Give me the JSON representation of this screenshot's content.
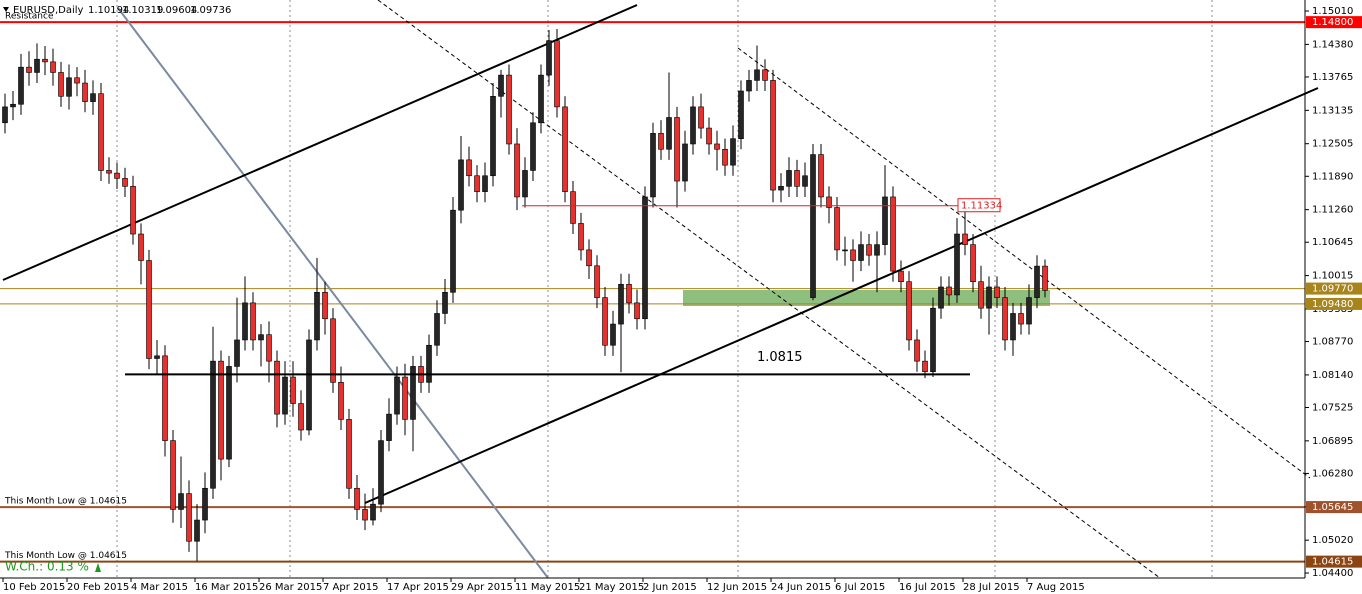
{
  "chart_data": {
    "type": "candlestick",
    "title": "EURUSD,Daily",
    "categories": [
      "10 Feb 2015",
      null,
      null,
      null,
      null,
      null,
      null,
      null,
      "20 Feb 2015",
      null,
      null,
      null,
      null,
      null,
      null,
      null,
      "4 Mar 2015",
      null,
      null,
      null,
      null,
      null,
      null,
      null,
      "16 Mar 2015",
      null,
      null,
      null,
      null,
      null,
      null,
      null,
      "26 Mar 2015",
      null,
      null,
      null,
      null,
      null,
      null,
      null,
      "7 Apr 2015",
      null,
      null,
      null,
      null,
      null,
      null,
      null,
      "17 Apr 2015",
      null,
      null,
      null,
      null,
      null,
      null,
      null,
      "29 Apr 2015",
      null,
      null,
      null,
      null,
      null,
      null,
      null,
      "11 May 2015",
      null,
      null,
      null,
      null,
      null,
      null,
      null,
      "21 May 2015",
      null,
      null,
      null,
      null,
      null,
      null,
      null,
      "2 Jun 2015",
      null,
      null,
      null,
      null,
      null,
      null,
      null,
      "12 Jun 2015",
      null,
      null,
      null,
      null,
      null,
      null,
      null,
      "24 Jun 2015",
      null,
      null,
      null,
      null,
      null,
      null,
      null,
      "6 Jul 2015",
      null,
      null,
      null,
      null,
      null,
      null,
      null,
      "16 Jul 2015",
      null,
      null,
      null,
      null,
      null,
      null,
      null,
      "28 Jul 2015",
      null,
      null,
      null,
      null,
      null,
      null,
      null,
      "7 Aug 2015",
      null,
      null
    ],
    "open": [
      1.129,
      1.132,
      1.1325,
      1.1395,
      1.1385,
      1.141,
      1.1405,
      1.1385,
      1.134,
      1.1375,
      1.1365,
      1.133,
      1.1345,
      1.12,
      1.1195,
      1.1185,
      1.117,
      1.108,
      1.103,
      1.0845,
      1.085,
      1.069,
      1.056,
      1.059,
      1.05,
      1.054,
      1.06,
      1.084,
      1.0655,
      1.083,
      1.088,
      1.095,
      1.088,
      1.089,
      1.084,
      1.074,
      1.081,
      1.076,
      1.071,
      1.088,
      1.097,
      1.092,
      1.08,
      1.073,
      1.06,
      1.056,
      1.054,
      1.057,
      1.069,
      1.074,
      1.081,
      1.073,
      1.083,
      1.08,
      1.087,
      1.093,
      1.097,
      1.1125,
      1.122,
      1.119,
      1.116,
      1.119,
      1.134,
      1.138,
      1.125,
      1.115,
      1.12,
      1.129,
      1.138,
      1.1445,
      1.132,
      1.116,
      1.11,
      1.105,
      1.102,
      1.096,
      1.087,
      1.091,
      1.0985,
      1.095,
      1.092,
      1.115,
      1.127,
      1.124,
      1.13,
      1.118,
      1.125,
      1.132,
      1.128,
      1.125,
      1.124,
      1.121,
      1.126,
      1.135,
      1.137,
      1.139,
      1.137,
      1.1163,
      1.117,
      1.12,
      1.117,
      1.096,
      1.123,
      1.115,
      1.113,
      1.105,
      1.105,
      1.103,
      1.106,
      1.104,
      1.106,
      1.115,
      1.101,
      1.099,
      1.088,
      1.084,
      1.082,
      1.094,
      1.098,
      1.0965,
      1.108,
      1.106,
      1.099,
      1.094,
      1.098,
      1.096,
      1.088,
      1.093,
      1.091,
      1.096,
      1.10194
    ],
    "high": [
      1.1345,
      1.135,
      1.142,
      1.1425,
      1.144,
      1.1435,
      1.143,
      1.1405,
      1.14,
      1.1395,
      1.139,
      1.137,
      1.1365,
      1.1225,
      1.1215,
      1.1205,
      1.119,
      1.11,
      1.105,
      1.088,
      1.087,
      1.071,
      1.066,
      1.0615,
      1.057,
      1.063,
      1.0905,
      1.086,
      1.085,
      1.096,
      1.1,
      1.097,
      1.091,
      1.0915,
      1.086,
      1.084,
      1.084,
      1.0785,
      1.09,
      1.1035,
      1.099,
      1.094,
      1.083,
      1.075,
      1.0625,
      1.059,
      1.06,
      1.071,
      1.077,
      1.083,
      1.0835,
      1.085,
      1.085,
      1.089,
      1.0955,
      1.0995,
      1.115,
      1.1265,
      1.1245,
      1.121,
      1.1215,
      1.1365,
      1.139,
      1.14,
      1.128,
      1.1225,
      1.131,
      1.14,
      1.1465,
      1.1467,
      1.134,
      1.118,
      1.112,
      1.107,
      1.104,
      1.098,
      1.0935,
      1.1005,
      1.1005,
      1.0975,
      1.117,
      1.129,
      1.1295,
      1.1385,
      1.132,
      1.1275,
      1.134,
      1.1345,
      1.13,
      1.1275,
      1.126,
      1.1285,
      1.137,
      1.139,
      1.1436,
      1.141,
      1.139,
      1.1195,
      1.1225,
      1.122,
      1.1215,
      1.125,
      1.125,
      1.117,
      1.115,
      1.1075,
      1.107,
      1.1085,
      1.108,
      1.1085,
      1.121,
      1.117,
      1.103,
      1.101,
      1.09,
      1.086,
      1.096,
      1.1,
      1.1,
      1.111,
      1.1128,
      1.108,
      1.102,
      1.1,
      1.1,
      1.098,
      1.095,
      1.095,
      1.0985,
      1.104,
      1.10319
    ],
    "low": [
      1.127,
      1.1295,
      1.1305,
      1.136,
      1.1365,
      1.138,
      1.136,
      1.132,
      1.1315,
      1.134,
      1.131,
      1.1305,
      1.118,
      1.1175,
      1.1165,
      1.115,
      1.106,
      1.0985,
      1.0825,
      1.0815,
      1.066,
      1.0535,
      1.0525,
      1.048,
      1.0462,
      1.0515,
      1.058,
      1.0615,
      1.064,
      1.08,
      1.086,
      1.086,
      1.083,
      1.08,
      1.0715,
      1.072,
      1.0735,
      1.069,
      1.07,
      1.086,
      1.089,
      1.078,
      1.071,
      1.058,
      1.054,
      1.0521,
      1.053,
      1.0555,
      1.067,
      1.072,
      1.07,
      1.067,
      1.078,
      1.078,
      1.085,
      1.091,
      1.095,
      1.11,
      1.117,
      1.114,
      1.114,
      1.117,
      1.13,
      1.123,
      1.1125,
      1.113,
      1.118,
      1.127,
      1.136,
      1.13,
      1.114,
      1.108,
      1.103,
      1.0995,
      1.094,
      1.085,
      1.085,
      1.0819,
      1.093,
      1.09,
      1.09,
      1.113,
      1.122,
      1.122,
      1.113,
      1.116,
      1.123,
      1.126,
      1.123,
      1.12,
      1.119,
      1.119,
      1.124,
      1.133,
      1.135,
      1.135,
      1.114,
      1.114,
      1.115,
      1.115,
      1.115,
      1.0955,
      1.113,
      1.11,
      1.103,
      1.102,
      1.099,
      1.101,
      1.102,
      1.097,
      1.104,
      1.099,
      1.097,
      1.086,
      1.082,
      1.0808,
      1.081,
      1.092,
      1.0945,
      1.095,
      1.104,
      1.097,
      1.092,
      1.089,
      1.094,
      1.086,
      1.085,
      1.089,
      1.089,
      1.094,
      1.09604
    ],
    "close": [
      1.132,
      1.1325,
      1.1395,
      1.1385,
      1.141,
      1.1405,
      1.1385,
      1.134,
      1.1375,
      1.1365,
      1.133,
      1.1345,
      1.12,
      1.1195,
      1.1185,
      1.117,
      1.108,
      1.103,
      1.0845,
      1.085,
      1.069,
      1.056,
      1.059,
      1.05,
      1.054,
      1.06,
      1.084,
      1.0655,
      1.083,
      1.088,
      1.095,
      1.088,
      1.089,
      1.084,
      1.074,
      1.081,
      1.076,
      1.071,
      1.088,
      1.097,
      1.092,
      1.08,
      1.073,
      1.06,
      1.056,
      1.054,
      1.057,
      1.069,
      1.074,
      1.081,
      1.073,
      1.083,
      1.08,
      1.087,
      1.093,
      1.097,
      1.1125,
      1.122,
      1.119,
      1.116,
      1.119,
      1.134,
      1.138,
      1.125,
      1.115,
      1.12,
      1.129,
      1.138,
      1.1445,
      1.132,
      1.116,
      1.11,
      1.105,
      1.102,
      1.096,
      1.087,
      1.091,
      1.0985,
      1.095,
      1.092,
      1.115,
      1.127,
      1.124,
      1.13,
      1.118,
      1.125,
      1.132,
      1.128,
      1.125,
      1.124,
      1.121,
      1.126,
      1.135,
      1.137,
      1.139,
      1.137,
      1.1163,
      1.117,
      1.12,
      1.117,
      1.119,
      1.123,
      1.115,
      1.113,
      1.105,
      1.105,
      1.103,
      1.106,
      1.104,
      1.106,
      1.115,
      1.101,
      1.099,
      1.088,
      1.084,
      1.082,
      1.094,
      1.098,
      1.0965,
      1.108,
      1.106,
      1.099,
      1.094,
      1.098,
      1.096,
      1.088,
      1.093,
      1.091,
      1.096,
      1.10194,
      1.09736
    ],
    "up_color": "#262626",
    "down_color": "#e8302c",
    "ylim": [
      1.04306,
      1.15218
    ],
    "yticks": [
      {
        "value": 1.1501,
        "label": "1.15010"
      },
      {
        "value": 1.1438,
        "label": "1.14380"
      },
      1.13765,
      1.13135,
      1.12505,
      {
        "value": 1.1189,
        "label": "1.11890"
      },
      {
        "value": 1.1126,
        "label": "1.11260"
      },
      1.10645,
      1.10015,
      1.09385,
      {
        "value": 1.0877,
        "label": "1.08770"
      },
      {
        "value": 1.0814,
        "label": "1.08140"
      },
      1.07525,
      1.06895,
      {
        "value": 1.0628,
        "label": "1.06280"
      },
      {
        "value": 1.0565,
        "label": "1.05650"
      },
      {
        "value": 1.0502,
        "label": "1.05020"
      },
      {
        "value": 1.044,
        "label": "1.04400"
      }
    ],
    "levels": [
      {
        "value": 1.148,
        "label": "1.14800",
        "color": "#ff0000",
        "note": "Resistance"
      },
      {
        "value": 1.0977,
        "label": "1.09770",
        "color": "#a8841c"
      },
      {
        "value": 1.0948,
        "label": "1.09480",
        "color": "#a8841c"
      },
      {
        "value": 1.05645,
        "color": "#a0522d",
        "note": "This Month Low @ 1.04615"
      },
      {
        "value": 1.04615,
        "color": "#8b4513",
        "note": "This Month Low @ 1.04615"
      }
    ],
    "segments": [
      {
        "value": 1.11334,
        "color": "#e02020"
      },
      {
        "value": 1.0815,
        "color": "#000000"
      }
    ],
    "weekly_change": "W.Ch.: 0.13 %"
  }
}
